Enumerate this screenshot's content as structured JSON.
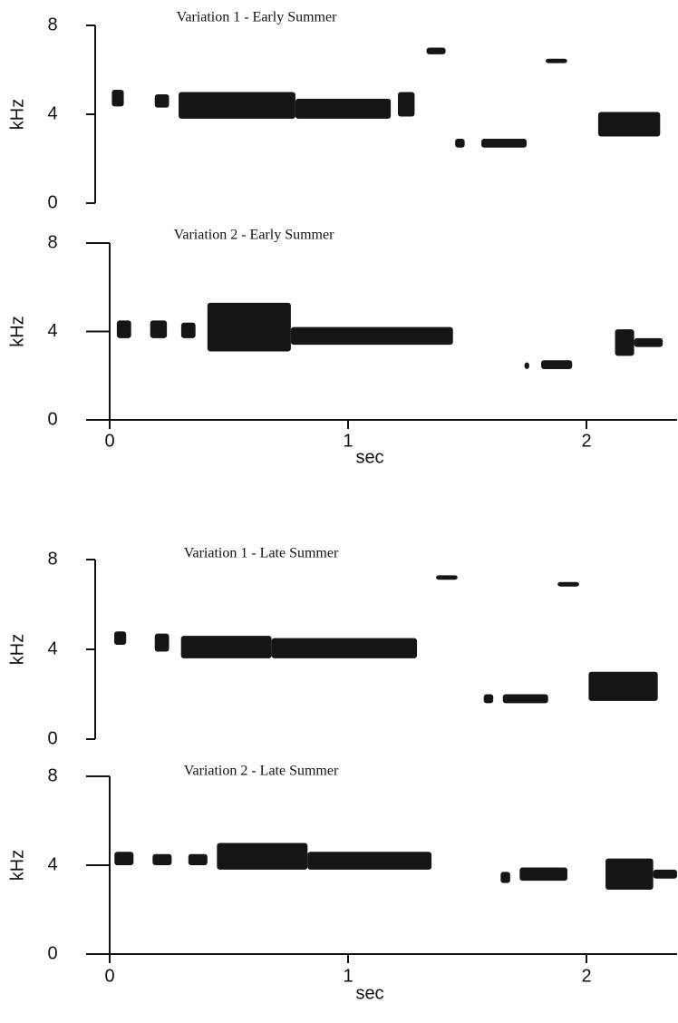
{
  "chart_data": [
    {
      "type": "spectrogram",
      "title": "Variation 1 - Early Summer",
      "ylabel": "kHz",
      "ylim": [
        0,
        8
      ],
      "yticks": [
        0,
        4,
        8
      ],
      "color": "#151515",
      "notes": [
        {
          "t": [
            0.07,
            0.12
          ],
          "f": [
            4.35,
            5.1
          ]
        },
        {
          "t": [
            0.25,
            0.31
          ],
          "f": [
            4.3,
            4.9
          ]
        },
        {
          "t": [
            0.35,
            0.84
          ],
          "f": [
            3.8,
            5.0
          ]
        },
        {
          "t": [
            0.84,
            1.24
          ],
          "f": [
            3.8,
            4.7
          ]
        },
        {
          "t": [
            1.27,
            1.34
          ],
          "f": [
            3.9,
            5.0
          ]
        },
        {
          "t": [
            1.39,
            1.47
          ],
          "f": [
            6.7,
            7.0
          ]
        },
        {
          "t": [
            1.51,
            1.55
          ],
          "f": [
            2.5,
            2.9
          ]
        },
        {
          "t": [
            1.62,
            1.81
          ],
          "f": [
            2.5,
            2.9
          ]
        },
        {
          "t": [
            1.89,
            1.98
          ],
          "f": [
            6.3,
            6.5
          ]
        },
        {
          "t": [
            2.11,
            2.37
          ],
          "f": [
            3.0,
            4.1
          ]
        }
      ]
    },
    {
      "type": "spectrogram",
      "title": "Variation 2 - Early Summer",
      "ylabel": "kHz",
      "ylim": [
        0,
        8
      ],
      "yticks": [
        0,
        4,
        8
      ],
      "color": "#151515",
      "xlabel": "sec",
      "xlim": [
        0,
        2.38
      ],
      "xticks": [
        0,
        1,
        2
      ],
      "notes": [
        {
          "t": [
            0.03,
            0.09
          ],
          "f": [
            3.7,
            4.5
          ]
        },
        {
          "t": [
            0.17,
            0.24
          ],
          "f": [
            3.7,
            4.5
          ]
        },
        {
          "t": [
            0.3,
            0.36
          ],
          "f": [
            3.7,
            4.4
          ]
        },
        {
          "t": [
            0.41,
            0.76
          ],
          "f": [
            3.1,
            5.3
          ]
        },
        {
          "t": [
            0.76,
            1.44
          ],
          "f": [
            3.4,
            4.2
          ]
        },
        {
          "t": [
            1.74,
            1.76
          ],
          "f": [
            2.3,
            2.6
          ]
        },
        {
          "t": [
            1.81,
            1.94
          ],
          "f": [
            2.3,
            2.7
          ]
        },
        {
          "t": [
            2.12,
            2.2
          ],
          "f": [
            2.9,
            4.1
          ]
        },
        {
          "t": [
            2.2,
            2.32
          ],
          "f": [
            3.3,
            3.7
          ]
        }
      ]
    },
    {
      "type": "spectrogram",
      "title": "Variation 1 - Late Summer",
      "ylabel": "kHz",
      "ylim": [
        0,
        8
      ],
      "yticks": [
        0,
        4,
        8
      ],
      "color": "#151515",
      "notes": [
        {
          "t": [
            0.08,
            0.13
          ],
          "f": [
            4.2,
            4.8
          ]
        },
        {
          "t": [
            0.25,
            0.31
          ],
          "f": [
            3.9,
            4.7
          ]
        },
        {
          "t": [
            0.36,
            0.74
          ],
          "f": [
            3.6,
            4.6
          ]
        },
        {
          "t": [
            0.74,
            1.35
          ],
          "f": [
            3.6,
            4.5
          ]
        },
        {
          "t": [
            1.43,
            1.52
          ],
          "f": [
            7.1,
            7.3
          ]
        },
        {
          "t": [
            1.63,
            1.67
          ],
          "f": [
            1.6,
            2.0
          ]
        },
        {
          "t": [
            1.71,
            1.9
          ],
          "f": [
            1.6,
            2.0
          ]
        },
        {
          "t": [
            1.94,
            2.03
          ],
          "f": [
            6.8,
            7.0
          ]
        },
        {
          "t": [
            2.07,
            2.36
          ],
          "f": [
            1.7,
            3.0
          ]
        }
      ]
    },
    {
      "type": "spectrogram",
      "title": "Variation 2 - Late Summer",
      "ylabel": "kHz",
      "ylim": [
        0,
        8
      ],
      "yticks": [
        0,
        4,
        8
      ],
      "color": "#151515",
      "xlabel": "sec",
      "xlim": [
        0,
        2.38
      ],
      "xticks": [
        0,
        1,
        2
      ],
      "notes": [
        {
          "t": [
            0.02,
            0.1
          ],
          "f": [
            4.0,
            4.6
          ]
        },
        {
          "t": [
            0.18,
            0.26
          ],
          "f": [
            4.0,
            4.5
          ]
        },
        {
          "t": [
            0.33,
            0.41
          ],
          "f": [
            4.0,
            4.5
          ]
        },
        {
          "t": [
            0.45,
            0.83
          ],
          "f": [
            3.8,
            5.0
          ]
        },
        {
          "t": [
            0.83,
            1.35
          ],
          "f": [
            3.8,
            4.6
          ]
        },
        {
          "t": [
            1.64,
            1.68
          ],
          "f": [
            3.2,
            3.7
          ]
        },
        {
          "t": [
            1.72,
            1.92
          ],
          "f": [
            3.3,
            3.9
          ]
        },
        {
          "t": [
            2.08,
            2.28
          ],
          "f": [
            2.9,
            4.3
          ]
        },
        {
          "t": [
            2.28,
            2.38
          ],
          "f": [
            3.4,
            3.8
          ]
        }
      ]
    }
  ]
}
